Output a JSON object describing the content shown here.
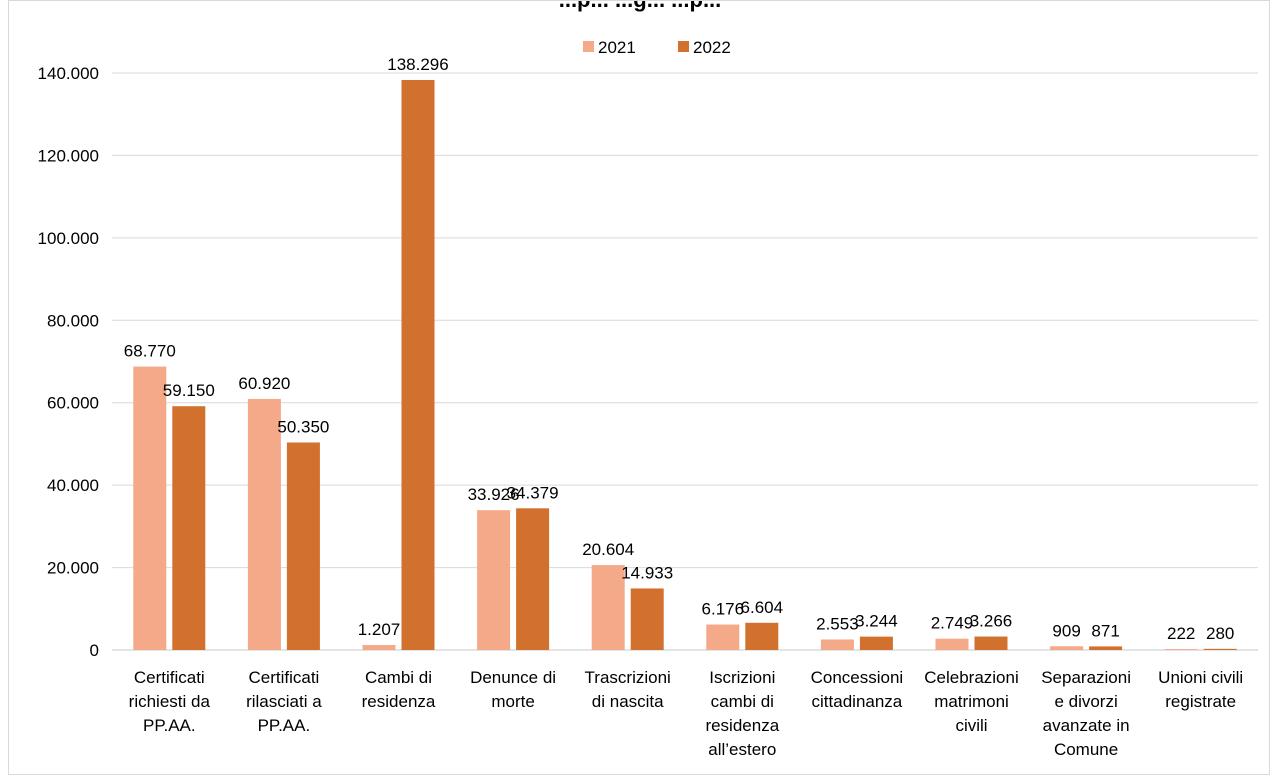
{
  "chart_data": {
    "type": "bar",
    "title": "...p... ...g... ...p...",
    "categories": [
      [
        "Certificati",
        "richiesti da",
        "PP.AA."
      ],
      [
        "Certificati",
        "rilasciati a",
        "PP.AA."
      ],
      [
        "Cambi di",
        "residenza"
      ],
      [
        "Denunce di",
        "morte"
      ],
      [
        "Trascrizioni",
        "di nascita"
      ],
      [
        "Iscrizioni",
        "cambi di",
        "residenza",
        "all’estero"
      ],
      [
        "Concessioni",
        "cittadinanza"
      ],
      [
        "Celebrazioni",
        "matrimoni",
        "civili"
      ],
      [
        "Separazioni",
        "e divorzi",
        "avanzate in",
        "Comune"
      ],
      [
        "Unioni civili",
        "registrate"
      ]
    ],
    "series": [
      {
        "name": "2021",
        "color": "#f4a988",
        "values": [
          68770,
          60920,
          1207,
          33926,
          20604,
          6176,
          2553,
          2749,
          909,
          222
        ],
        "labels": [
          "68.770",
          "60.920",
          "1.207",
          "33.926",
          "20.604",
          "6.176",
          "2.553",
          "2.749",
          "909",
          "222"
        ]
      },
      {
        "name": "2022",
        "color": "#d2702e",
        "values": [
          59150,
          50350,
          138296,
          34379,
          14933,
          6604,
          3244,
          3266,
          871,
          280
        ],
        "labels": [
          "59.150",
          "50.350",
          "138.296",
          "34.379",
          "14.933",
          "6.604",
          "3.244",
          "3.266",
          "871",
          "280"
        ]
      }
    ],
    "y_ticks": [
      "0",
      "20.000",
      "40.000",
      "60.000",
      "80.000",
      "100.000",
      "120.000",
      "140.000"
    ],
    "ylim": [
      0,
      140000
    ],
    "grid": true,
    "legend_position": "top-center"
  }
}
